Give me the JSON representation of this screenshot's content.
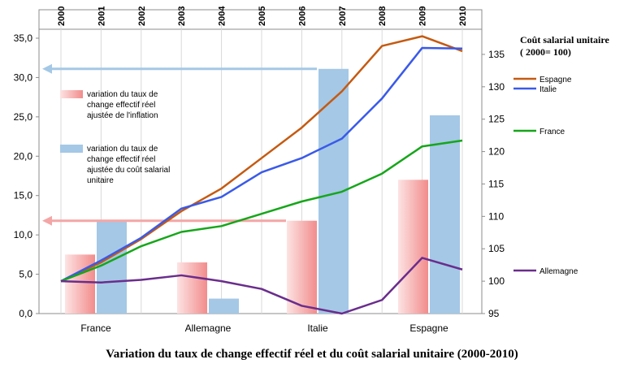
{
  "caption": "Variation du taux de change effectif réel et du coût salarial unitaire (2000-2010)",
  "chart_data": {
    "type": "bar+line",
    "title": "",
    "bars": {
      "categories": [
        "France",
        "Allemagne",
        "Italie",
        "Espagne"
      ],
      "ylim": [
        0,
        35
      ],
      "y_ticks": [
        "0,0",
        "5,0",
        "10,0",
        "15,0",
        "20,0",
        "25,0",
        "30,0",
        "35,0"
      ],
      "series": [
        {
          "name": "variation du taux de change effectif réel ajustée de l'inflation",
          "legend_lines": [
            "variation du taux de",
            "change effectif réel",
            "ajustée de l'inflation"
          ],
          "color": "#f4a6a6",
          "values": [
            7.5,
            6.5,
            11.8,
            17.0
          ]
        },
        {
          "name": "variation du taux de change effectif réel ajustée du coût salarial unitaire",
          "legend_lines": [
            "variation du taux de",
            "change effectif réel",
            "ajustée du coût salarial",
            "unitaire"
          ],
          "color": "#a4c8e6",
          "values": [
            11.8,
            1.9,
            31.1,
            25.2
          ]
        }
      ]
    },
    "lines": {
      "x": [
        "2000",
        "2001",
        "2002",
        "2003",
        "2004",
        "2005",
        "2006",
        "2007",
        "2008",
        "2009",
        "2010"
      ],
      "ylim": [
        95,
        137.5
      ],
      "y_ticks": [
        "95",
        "100",
        "105",
        "110",
        "115",
        "120",
        "125",
        "130",
        "135"
      ],
      "axis_title": [
        "Coût salarial unitaire",
        "( 2000= 100)"
      ],
      "series": [
        {
          "name": "Espagne",
          "color": "#c55a11",
          "values": [
            100,
            102.9,
            106.5,
            110.8,
            114.3,
            119.0,
            123.7,
            129.3,
            136.3,
            137.8,
            135.5
          ]
        },
        {
          "name": "Italie",
          "color": "#3a5ae8",
          "values": [
            100,
            103.2,
            106.7,
            111.2,
            113.0,
            116.8,
            119.0,
            122.0,
            128.2,
            136.0,
            135.9
          ]
        },
        {
          "name": "France",
          "color": "#16a61a",
          "values": [
            100,
            102.4,
            105.4,
            107.6,
            108.5,
            110.4,
            112.3,
            113.8,
            116.6,
            120.8,
            121.7
          ]
        },
        {
          "name": "Allemagne",
          "color": "#6a2d8c",
          "values": [
            100,
            99.8,
            100.2,
            100.9,
            100.0,
            98.8,
            96.2,
            95.0,
            97.1,
            103.6,
            101.8
          ]
        }
      ]
    },
    "arrows": [
      {
        "level": 31.1,
        "color": "#a4c8e6"
      },
      {
        "level": 11.8,
        "color": "#f4a6a6"
      }
    ]
  }
}
